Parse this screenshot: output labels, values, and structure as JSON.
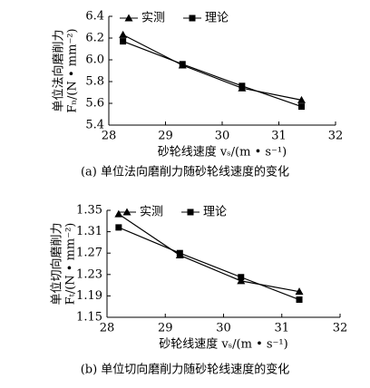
{
  "chart_data": [
    {
      "type": "line",
      "caption": "(a) 单位法向磨削力随砂轮线速度的变化",
      "y_label": [
        "单位法向磨削力",
        "Fₙ/(N • mm⁻²)"
      ],
      "x_label": "砂轮线速度 vₛ/(m • s⁻¹)",
      "x": [
        28.25,
        29.3,
        30.35,
        31.4
      ],
      "series": [
        {
          "name": "实测",
          "color": "#000000",
          "marker": "triangle",
          "values": [
            6.23,
            5.95,
            5.74,
            5.63
          ]
        },
        {
          "name": "理论",
          "color": "#000000",
          "marker": "square",
          "values": [
            6.17,
            5.96,
            5.76,
            5.57
          ]
        }
      ],
      "xlim": [
        28,
        32
      ],
      "xticks": [
        28,
        29,
        30,
        31,
        32
      ],
      "ylim": [
        5.4,
        6.4
      ],
      "yticks": [
        5.4,
        5.6,
        5.8,
        {
          "value": 6,
          "label": "6.0"
        },
        6.2,
        6.4
      ]
    },
    {
      "type": "line",
      "caption": "(b) 单位切向磨削力随砂轮线速度的变化",
      "y_label": [
        "单位切向磨削力",
        "Fₜ/(N • mm⁻²)"
      ],
      "x_label": "砂轮线速度 vₛ/(m • s⁻¹)",
      "x": [
        28.2,
        29.25,
        30.3,
        31.3
      ],
      "series": [
        {
          "name": "实测",
          "color": "#000000",
          "marker": "triangle",
          "values": [
            1.343,
            1.266,
            1.218,
            1.198
          ]
        },
        {
          "name": "理论",
          "color": "#000000",
          "marker": "square",
          "values": [
            1.318,
            1.27,
            1.225,
            1.183
          ]
        }
      ],
      "xlim": [
        28,
        32
      ],
      "xticks": [
        28,
        29,
        30,
        31,
        32
      ],
      "ylim": [
        1.15,
        1.35
      ],
      "yticks": [
        1.15,
        1.19,
        1.23,
        1.27,
        1.31,
        1.35
      ]
    }
  ]
}
